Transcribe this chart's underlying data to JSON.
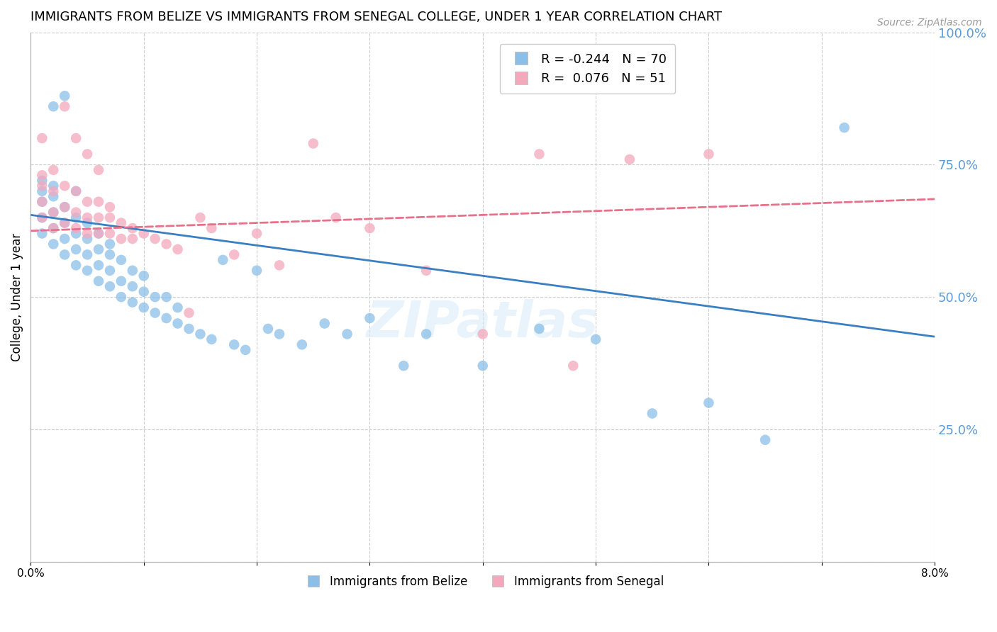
{
  "title": "IMMIGRANTS FROM BELIZE VS IMMIGRANTS FROM SENEGAL COLLEGE, UNDER 1 YEAR CORRELATION CHART",
  "source": "Source: ZipAtlas.com",
  "ylabel": "College, Under 1 year",
  "xlim": [
    0.0,
    0.08
  ],
  "ylim": [
    0.0,
    1.0
  ],
  "yticks_right": [
    0.25,
    0.5,
    0.75,
    1.0
  ],
  "ytick_labels_right": [
    "25.0%",
    "50.0%",
    "75.0%",
    "100.0%"
  ],
  "legend_r_belize": "-0.244",
  "legend_n_belize": "70",
  "legend_r_senegal": "0.076",
  "legend_n_senegal": "51",
  "color_belize": "#8bbfe8",
  "color_senegal": "#f4a8bc",
  "color_trend_belize": "#3a7fc1",
  "color_trend_senegal": "#e8708a",
  "background_color": "#ffffff",
  "grid_color": "#cccccc",
  "right_axis_color": "#5b9bd5",
  "title_fontsize": 13,
  "source_fontsize": 10,
  "axis_label_fontsize": 12,
  "trend_belize_y0": 0.655,
  "trend_belize_y1": 0.425,
  "trend_senegal_y0": 0.625,
  "trend_senegal_y1": 0.685,
  "belize_x": [
    0.001,
    0.001,
    0.001,
    0.001,
    0.001,
    0.002,
    0.002,
    0.002,
    0.002,
    0.002,
    0.002,
    0.003,
    0.003,
    0.003,
    0.003,
    0.003,
    0.004,
    0.004,
    0.004,
    0.004,
    0.004,
    0.005,
    0.005,
    0.005,
    0.005,
    0.006,
    0.006,
    0.006,
    0.006,
    0.007,
    0.007,
    0.007,
    0.007,
    0.008,
    0.008,
    0.008,
    0.009,
    0.009,
    0.009,
    0.01,
    0.01,
    0.01,
    0.011,
    0.011,
    0.012,
    0.012,
    0.013,
    0.013,
    0.014,
    0.015,
    0.016,
    0.017,
    0.018,
    0.019,
    0.02,
    0.021,
    0.022,
    0.024,
    0.026,
    0.028,
    0.03,
    0.033,
    0.035,
    0.04,
    0.045,
    0.05,
    0.055,
    0.06,
    0.065,
    0.072
  ],
  "belize_y": [
    0.62,
    0.65,
    0.68,
    0.7,
    0.72,
    0.6,
    0.63,
    0.66,
    0.69,
    0.71,
    0.86,
    0.58,
    0.61,
    0.64,
    0.67,
    0.88,
    0.56,
    0.59,
    0.62,
    0.65,
    0.7,
    0.55,
    0.58,
    0.61,
    0.64,
    0.53,
    0.56,
    0.59,
    0.62,
    0.52,
    0.55,
    0.58,
    0.6,
    0.5,
    0.53,
    0.57,
    0.49,
    0.52,
    0.55,
    0.48,
    0.51,
    0.54,
    0.47,
    0.5,
    0.46,
    0.5,
    0.45,
    0.48,
    0.44,
    0.43,
    0.42,
    0.57,
    0.41,
    0.4,
    0.55,
    0.44,
    0.43,
    0.41,
    0.45,
    0.43,
    0.46,
    0.37,
    0.43,
    0.37,
    0.44,
    0.42,
    0.28,
    0.3,
    0.23,
    0.82
  ],
  "senegal_x": [
    0.001,
    0.001,
    0.001,
    0.001,
    0.001,
    0.002,
    0.002,
    0.002,
    0.002,
    0.003,
    0.003,
    0.003,
    0.004,
    0.004,
    0.004,
    0.005,
    0.005,
    0.005,
    0.006,
    0.006,
    0.006,
    0.007,
    0.007,
    0.007,
    0.008,
    0.008,
    0.009,
    0.009,
    0.01,
    0.011,
    0.012,
    0.013,
    0.014,
    0.015,
    0.016,
    0.018,
    0.02,
    0.022,
    0.025,
    0.027,
    0.03,
    0.035,
    0.04,
    0.045,
    0.048,
    0.053,
    0.06,
    0.003,
    0.004,
    0.005,
    0.006
  ],
  "senegal_y": [
    0.65,
    0.68,
    0.71,
    0.73,
    0.8,
    0.63,
    0.66,
    0.7,
    0.74,
    0.64,
    0.67,
    0.71,
    0.63,
    0.66,
    0.7,
    0.62,
    0.65,
    0.68,
    0.62,
    0.65,
    0.68,
    0.62,
    0.65,
    0.67,
    0.61,
    0.64,
    0.61,
    0.63,
    0.62,
    0.61,
    0.6,
    0.59,
    0.47,
    0.65,
    0.63,
    0.58,
    0.62,
    0.56,
    0.79,
    0.65,
    0.63,
    0.55,
    0.43,
    0.77,
    0.37,
    0.76,
    0.77,
    0.86,
    0.8,
    0.77,
    0.74
  ]
}
